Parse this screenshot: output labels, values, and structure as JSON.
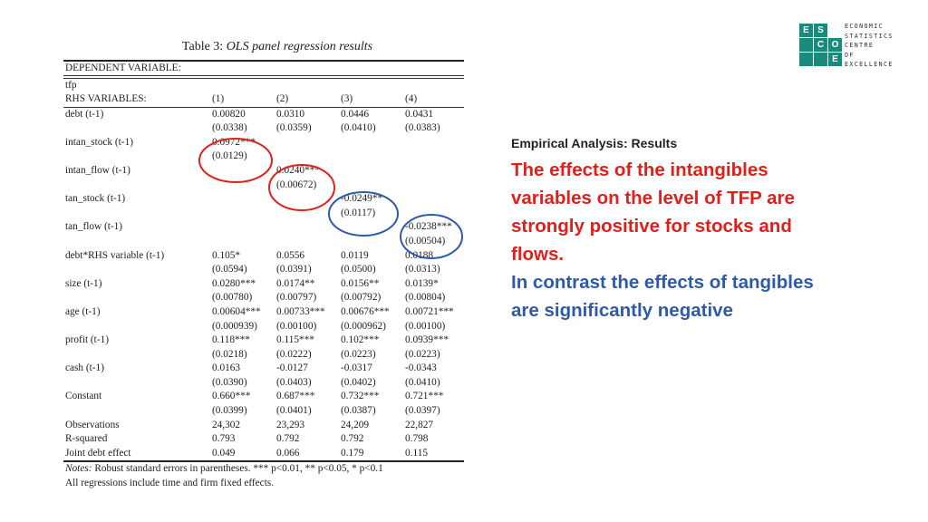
{
  "table": {
    "title_prefix": "Table 3:",
    "title_italic": "OLS panel regression results",
    "dependent_label": "DEPENDENT VARIABLE:",
    "dependent_value": "tfp",
    "header": [
      "RHS VARIABLES:",
      "(1)",
      "(2)",
      "(3)",
      "(4)"
    ],
    "rows": [
      [
        "debt (t-1)",
        "0.00820",
        "0.0310",
        "0.0446",
        "0.0431"
      ],
      [
        "",
        "(0.0338)",
        "(0.0359)",
        "(0.0410)",
        "(0.0383)"
      ],
      [
        "intan_stock (t-1)",
        "0.0972***",
        "",
        "",
        ""
      ],
      [
        "",
        "(0.0129)",
        "",
        "",
        ""
      ],
      [
        "intan_flow (t-1)",
        "",
        "0.0240***",
        "",
        ""
      ],
      [
        "",
        "",
        "(0.00672)",
        "",
        ""
      ],
      [
        "tan_stock (t-1)",
        "",
        "",
        "-0.0249**",
        ""
      ],
      [
        "",
        "",
        "",
        "(0.0117)",
        ""
      ],
      [
        "tan_flow (t-1)",
        "",
        "",
        "",
        "-0.0238***"
      ],
      [
        "",
        "",
        "",
        "",
        "(0.00504)"
      ],
      [
        "debt*RHS variable (t-1)",
        "0.105*",
        "0.0556",
        "0.0119",
        "0.0188"
      ],
      [
        "",
        "(0.0594)",
        "(0.0391)",
        "(0.0500)",
        "(0.0313)"
      ],
      [
        "size (t-1)",
        "0.0280***",
        "0.0174**",
        "0.0156**",
        "0.0139*"
      ],
      [
        "",
        "(0.00780)",
        "(0.00797)",
        "(0.00792)",
        "(0.00804)"
      ],
      [
        "age (t-1)",
        "0.00604***",
        "0.00733***",
        "0.00676***",
        "0.00721***"
      ],
      [
        "",
        "(0.000939)",
        "(0.00100)",
        "(0.000962)",
        "(0.00100)"
      ],
      [
        "profit (t-1)",
        "0.118***",
        "0.115***",
        "0.102***",
        "0.0939***"
      ],
      [
        "",
        "(0.0218)",
        "(0.0222)",
        "(0.0223)",
        "(0.0223)"
      ],
      [
        "cash (t-1)",
        "0.0163",
        "-0.0127",
        "-0.0317",
        "-0.0343"
      ],
      [
        "",
        "(0.0390)",
        "(0.0403)",
        "(0.0402)",
        "(0.0410)"
      ],
      [
        "Constant",
        "0.660***",
        "0.687***",
        "0.732***",
        "0.721***"
      ],
      [
        "",
        "(0.0399)",
        "(0.0401)",
        "(0.0387)",
        "(0.0397)"
      ],
      [
        "Observations",
        "24,302",
        "23,293",
        "24,209",
        "22,827"
      ],
      [
        "R-squared",
        "0.793",
        "0.792",
        "0.792",
        "0.798"
      ],
      [
        "Joint debt effect",
        "0.049",
        "0.066",
        "0.179",
        "0.115"
      ]
    ],
    "notes_label": "Notes:",
    "notes_line1": "Robust standard errors in parentheses. *** p<0.01, ** p<0.05, * p<0.1",
    "notes_line2": "All regressions include time and firm fixed effects."
  },
  "annotations": {
    "circle_colors": [
      "#e0201b",
      "#e0201b",
      "#2f5aa8",
      "#2f5aa8"
    ]
  },
  "right_text": {
    "subheading": "Empirical Analysis: Results",
    "red_paragraph": "The effects of the intangibles variables on the level of TFP are strongly positive for stocks and flows.",
    "blue_paragraph": "In contrast the effects of tangibles are significantly negative",
    "red_color": "#e0201b",
    "blue_color": "#2f5aa8"
  },
  "logo": {
    "letters": [
      "E",
      "S",
      "C",
      "O",
      "E"
    ],
    "words": [
      "ECONOMIC",
      "STATISTICS",
      "CENTRE",
      "OF",
      "EXCELLENCE"
    ],
    "color": "#1b8a7e"
  }
}
